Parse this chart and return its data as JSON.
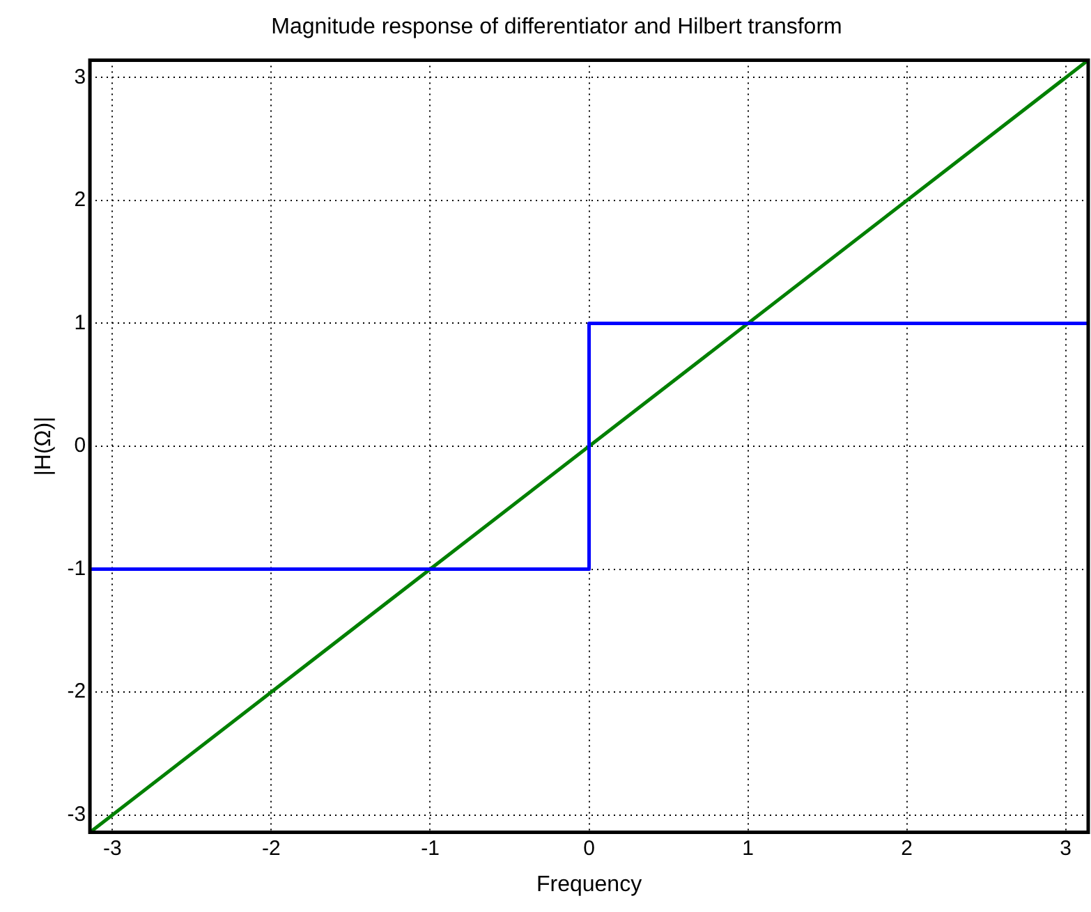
{
  "chart_data": {
    "type": "line",
    "title": "Magnitude response of differentiator and Hilbert transform",
    "xlabel": "Frequency",
    "ylabel": "|H(Ω)|",
    "xlim": [
      -3.1416,
      3.1416
    ],
    "xticks": [
      -3,
      -2,
      -1,
      0,
      1,
      2,
      3
    ],
    "ylim": [
      -3.1416,
      3.1416
    ],
    "yticks": [
      -3,
      -2,
      -1,
      0,
      1,
      2,
      3
    ],
    "grid": true,
    "line_style": "solid",
    "marker": "none",
    "series": [
      {
        "color": "#0000ff",
        "x": [
          -3.1416,
          0,
          0,
          3.1416
        ],
        "values": [
          -1,
          -1,
          1,
          1
        ]
      },
      {
        "color": "#008000",
        "x": [
          -3.1416,
          3.1416
        ],
        "values": [
          -3.1416,
          3.1416
        ]
      }
    ]
  }
}
